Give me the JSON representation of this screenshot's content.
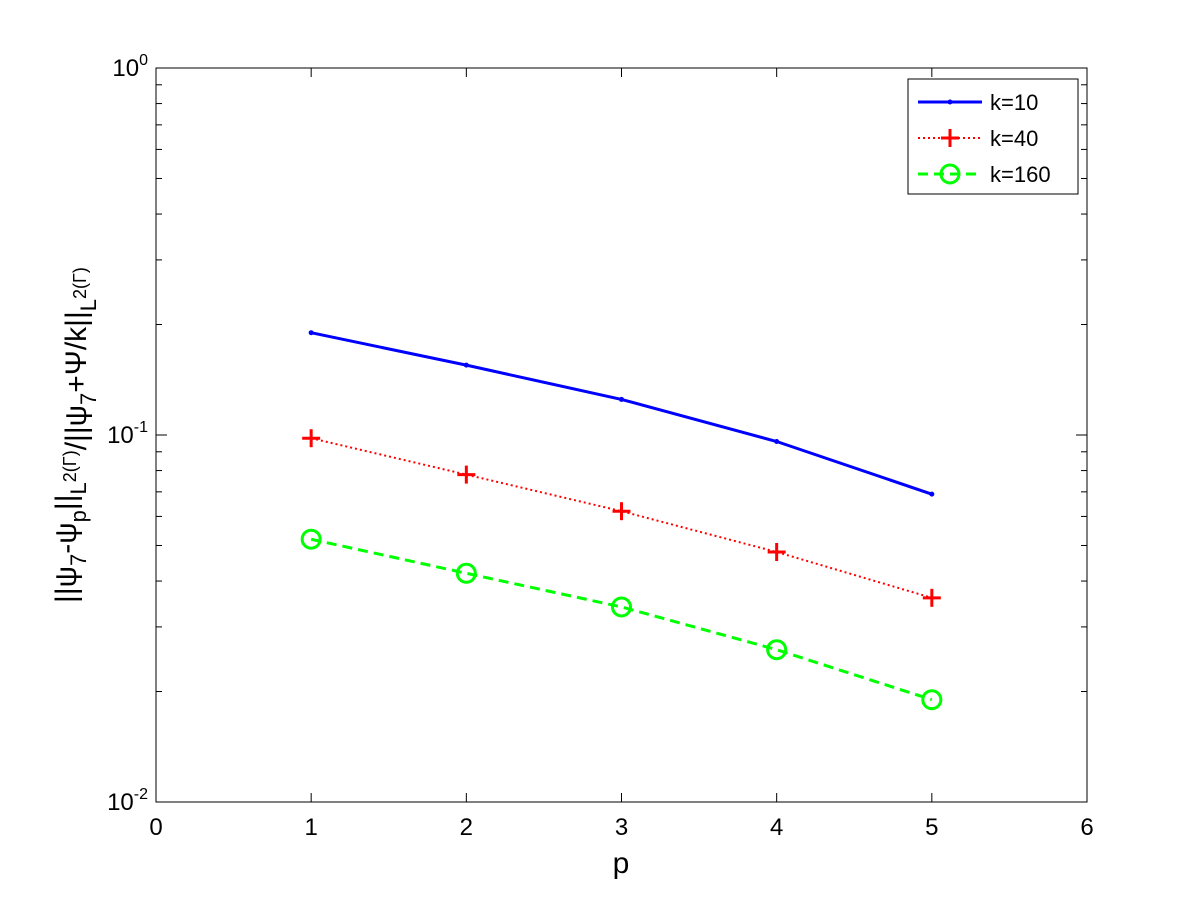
{
  "chart_data": {
    "type": "line",
    "xlabel": "p",
    "ylabel": "||ψ7-ψp||L2(Γ)/||ψ7+Ψ/k||L2(Γ)",
    "xlim": [
      0,
      6
    ],
    "ylim": [
      0.01,
      1
    ],
    "yscale": "log",
    "grid": false,
    "legend_position": "top-right",
    "x_ticks": [
      "0",
      "1",
      "2",
      "3",
      "4",
      "5",
      "6"
    ],
    "y_ticks": [
      {
        "value": 1,
        "base": "10",
        "exp": "0"
      },
      {
        "value": 0.1,
        "base": "10",
        "exp": "-1"
      },
      {
        "value": 0.01,
        "base": "10",
        "exp": "-2"
      }
    ],
    "x": [
      1,
      2,
      3,
      4,
      5
    ],
    "series": [
      {
        "name": "k=10",
        "color": "#0000ff",
        "style": "solid",
        "marker": "point",
        "values": [
          0.19,
          0.155,
          0.125,
          0.096,
          0.069
        ]
      },
      {
        "name": "k=40",
        "color": "#ff0000",
        "style": "dotted",
        "marker": "plus",
        "values": [
          0.098,
          0.078,
          0.062,
          0.048,
          0.036
        ]
      },
      {
        "name": "k=160",
        "color": "#00ff00",
        "style": "dashed",
        "marker": "circle",
        "values": [
          0.052,
          0.042,
          0.034,
          0.026,
          0.019
        ]
      }
    ]
  }
}
